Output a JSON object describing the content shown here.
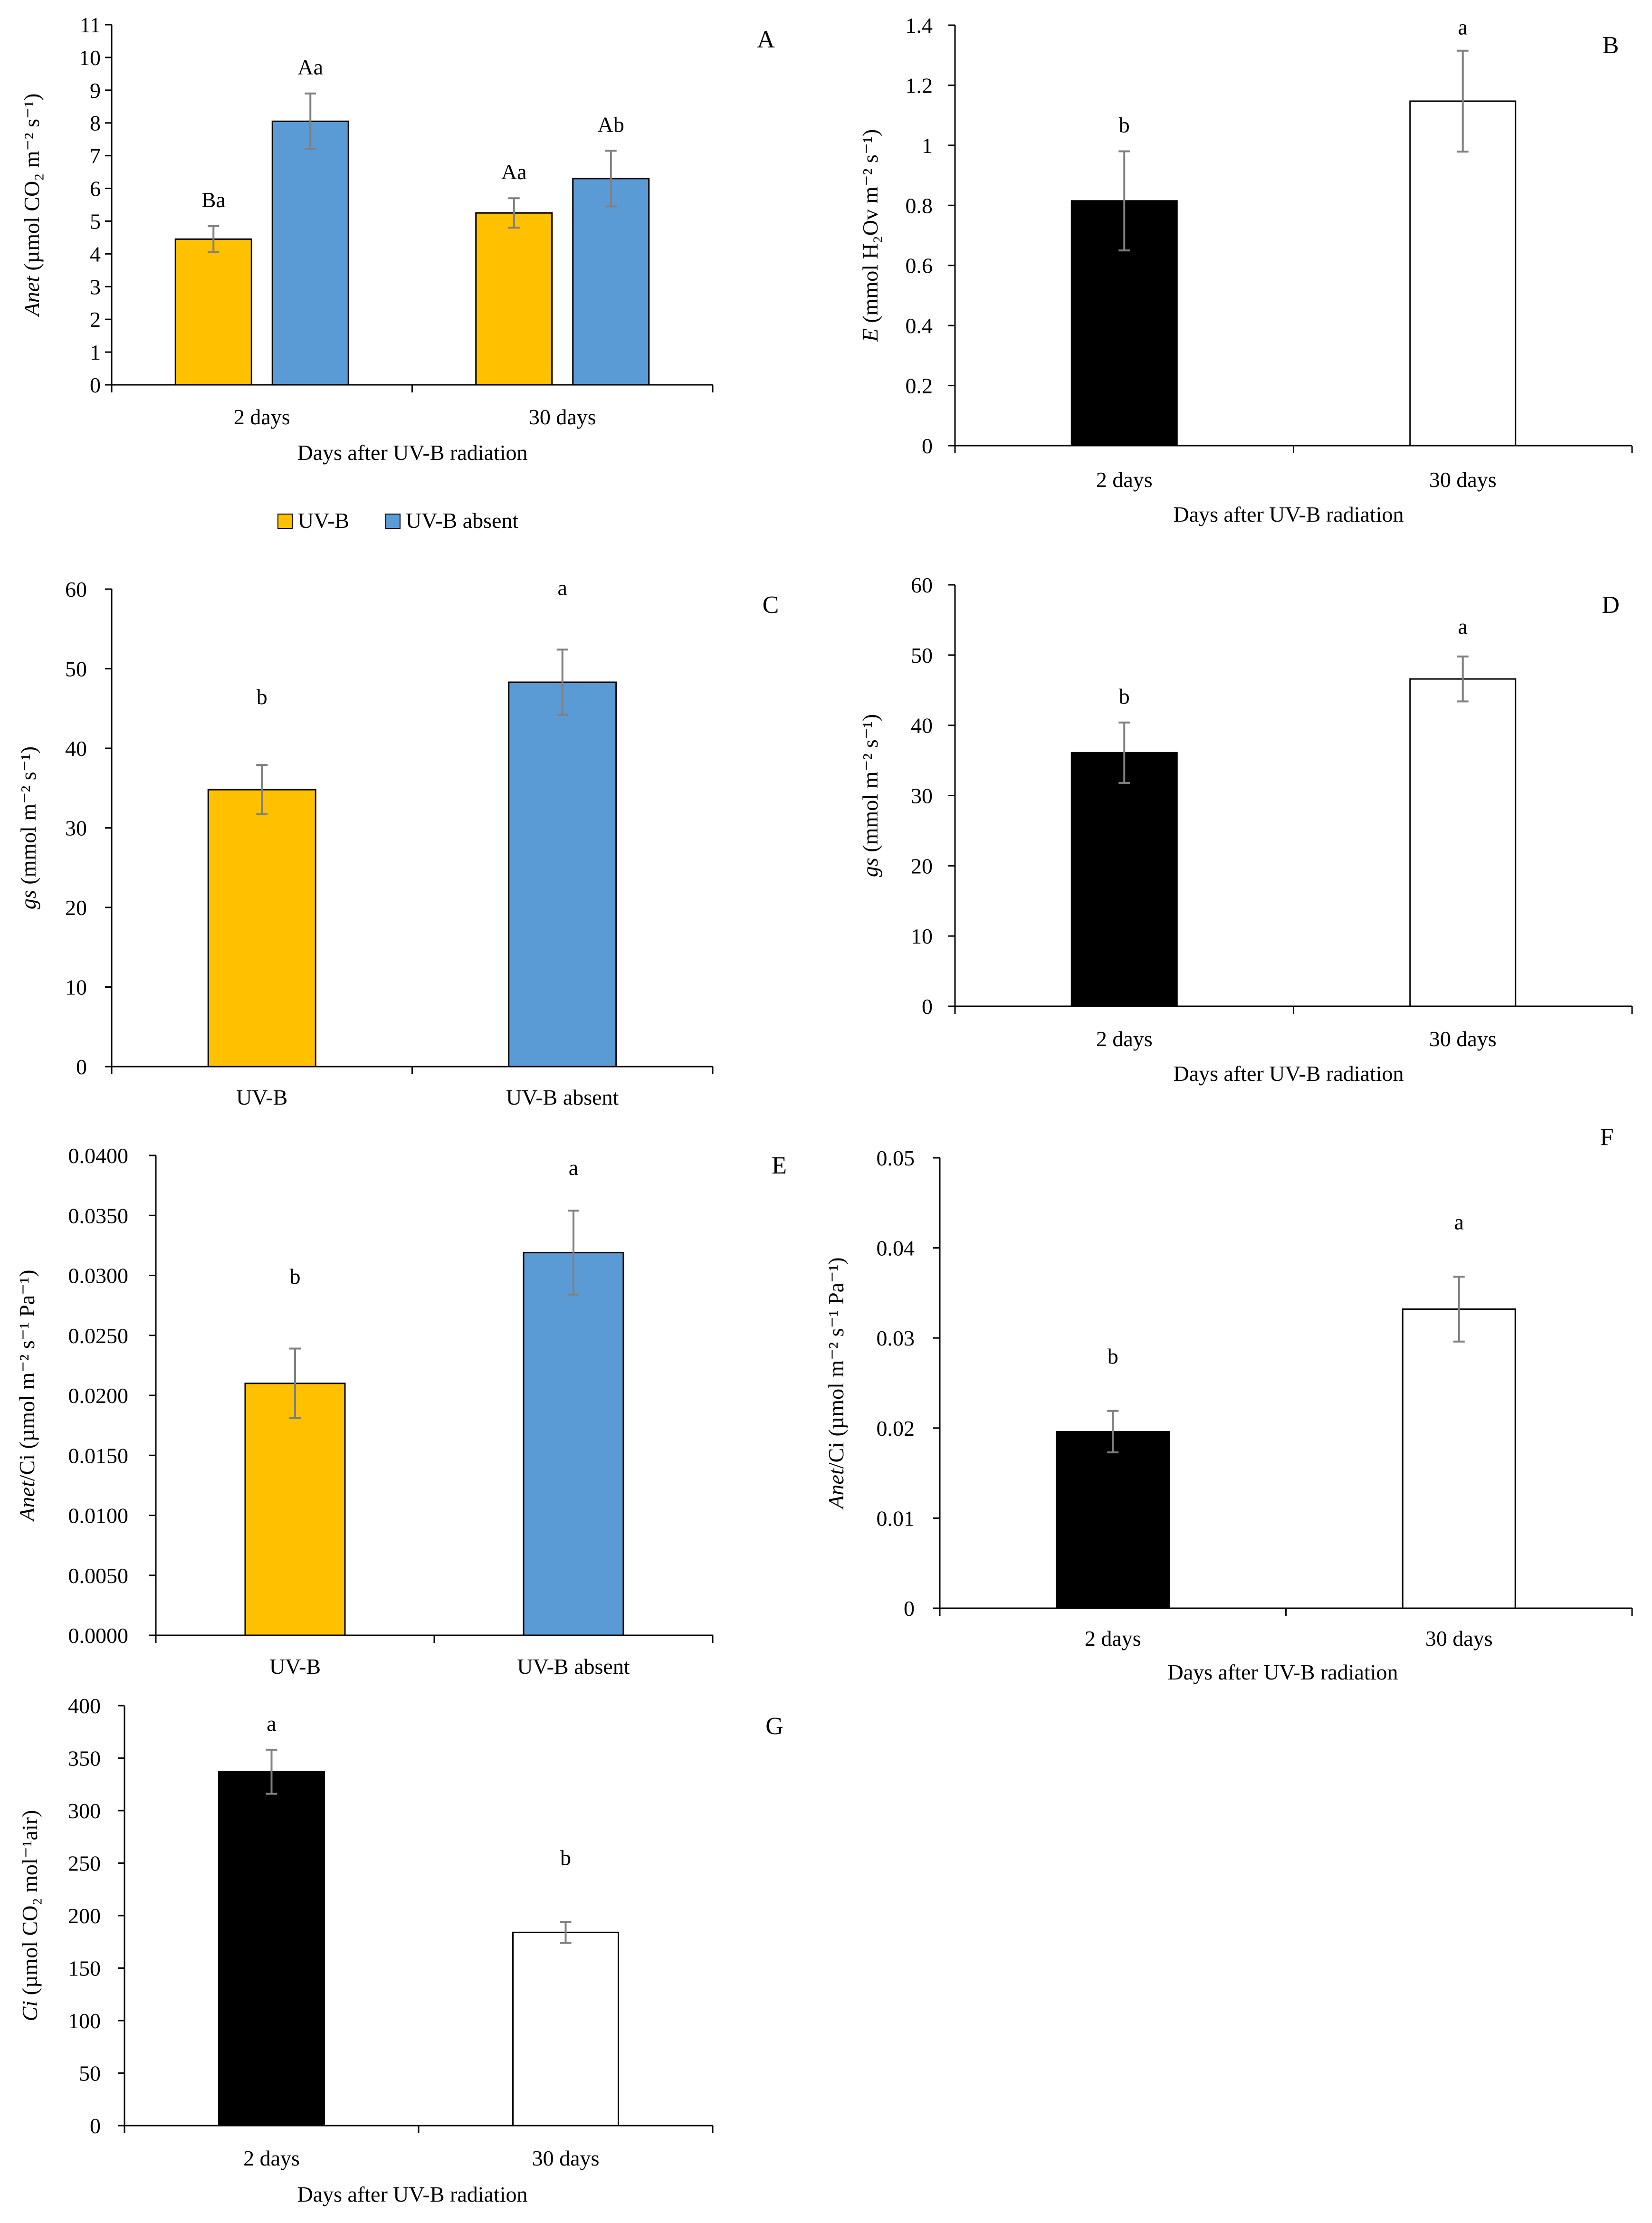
{
  "figure": {
    "panels": [
      {
        "id": "A",
        "label": "A",
        "y_label_italic": "Anet",
        "y_label_rest": " (µmol CO₂ m⁻² s⁻¹)",
        "x_title": "Days after UV-B radiation"
      },
      {
        "id": "B",
        "label": "B",
        "y_label_italic": "E",
        "y_label_rest": " (mmol H₂Ov m⁻² s⁻¹)",
        "x_title": "Days after UV-B radiation"
      },
      {
        "id": "C",
        "label": "C",
        "y_label_italic": "gs",
        "y_label_rest": " (mmol m⁻² s⁻¹)",
        "x_title": ""
      },
      {
        "id": "D",
        "label": "D",
        "y_label_italic": "gs",
        "y_label_rest": " (mmol m⁻² s⁻¹)",
        "x_title": "Days after UV-B radiation"
      },
      {
        "id": "E",
        "label": "E",
        "y_label_italic": "Anet",
        "y_label_rest": "/Ci (µmol m⁻² s⁻¹ Pa⁻¹)",
        "x_title": ""
      },
      {
        "id": "F",
        "label": "F",
        "y_label_italic": "Anet",
        "y_label_rest": "/Ci (µmol m⁻² s⁻¹ Pa⁻¹)",
        "x_title": "Days after UV-B radiation"
      },
      {
        "id": "G",
        "label": "G",
        "y_label_italic": "Ci",
        "y_label_rest": " (µmol CO₂ mol⁻¹air)",
        "x_title": "Days after UV-B radiation"
      }
    ],
    "legend": {
      "items": [
        {
          "label": "UV-B",
          "color": "#FFC000"
        },
        {
          "label": "UV-B absent",
          "color": "#5B9BD5"
        }
      ]
    }
  },
  "chart_data": [
    {
      "id": "A",
      "type": "bar",
      "title": "",
      "xlabel": "Days after UV-B radiation",
      "ylabel": "Anet (µmol CO2 m-2 s-1)",
      "ylim": [
        0,
        11
      ],
      "yticks": [
        "0",
        "1",
        "2",
        "3",
        "4",
        "5",
        "6",
        "7",
        "8",
        "9",
        "10",
        "11"
      ],
      "categories": [
        "2 days",
        "30 days"
      ],
      "series": [
        {
          "name": "UV-B",
          "color": "#FFC000",
          "values": [
            4.45,
            5.25
          ],
          "errors": [
            0.4,
            0.45
          ],
          "letters": [
            "Ba",
            "Aa"
          ]
        },
        {
          "name": "UV-B absent",
          "color": "#5B9BD5",
          "values": [
            8.05,
            6.3
          ],
          "errors": [
            0.85,
            0.85
          ],
          "letters": [
            "Aa",
            "Ab"
          ]
        }
      ]
    },
    {
      "id": "B",
      "type": "bar",
      "title": "",
      "xlabel": "Days after UV-B radiation",
      "ylabel": "E (mmol H2Ov m-2 s-1)",
      "ylim": [
        0,
        1.4
      ],
      "yticks": [
        "0",
        "0.2",
        "0.4",
        "0.6",
        "0.8",
        "1",
        "1.2",
        "1.4"
      ],
      "categories": [
        "2 days",
        "30 days"
      ],
      "series": [
        {
          "name": "",
          "colors": [
            "#000000",
            "#FFFFFF"
          ],
          "values": [
            0.815,
            1.147
          ],
          "errors": [
            0.165,
            0.168
          ],
          "letters": [
            "b",
            "a"
          ]
        }
      ]
    },
    {
      "id": "C",
      "type": "bar",
      "title": "",
      "xlabel": "",
      "ylabel": "gs (mmol m-2 s-1)",
      "ylim": [
        0,
        60
      ],
      "yticks": [
        "0",
        "10",
        "20",
        "30",
        "40",
        "50",
        "60"
      ],
      "categories": [
        "UV-B",
        "UV-B absent"
      ],
      "series": [
        {
          "name": "",
          "colors": [
            "#FFC000",
            "#5B9BD5"
          ],
          "values": [
            34.8,
            48.3
          ],
          "errors": [
            3.1,
            4.1
          ],
          "letters": [
            "b",
            "a"
          ]
        }
      ]
    },
    {
      "id": "D",
      "type": "bar",
      "title": "",
      "xlabel": "Days after UV-B radiation",
      "ylabel": "gs (mmol m-2 s-1)",
      "ylim": [
        0,
        60
      ],
      "yticks": [
        "0",
        "10",
        "20",
        "30",
        "40",
        "50",
        "60"
      ],
      "categories": [
        "2 days",
        "30 days"
      ],
      "series": [
        {
          "name": "",
          "colors": [
            "#000000",
            "#FFFFFF"
          ],
          "values": [
            36.1,
            46.6
          ],
          "errors": [
            4.3,
            3.2
          ],
          "letters": [
            "b",
            "a"
          ]
        }
      ]
    },
    {
      "id": "E",
      "type": "bar",
      "title": "",
      "xlabel": "",
      "ylabel": "Anet/Ci (µmol m-2 s-1 Pa-1)",
      "ylim": [
        0,
        0.04
      ],
      "yticks": [
        "0.0000",
        "0.0050",
        "0.0100",
        "0.0150",
        "0.0200",
        "0.0250",
        "0.0300",
        "0.0350",
        "0.0400"
      ],
      "categories": [
        "UV-B",
        "UV-B absent"
      ],
      "series": [
        {
          "name": "",
          "colors": [
            "#FFC000",
            "#5B9BD5"
          ],
          "values": [
            0.021,
            0.0319
          ],
          "errors": [
            0.0029,
            0.0035
          ],
          "letters": [
            "b",
            "a"
          ]
        }
      ]
    },
    {
      "id": "F",
      "type": "bar",
      "title": "",
      "xlabel": "Days after UV-B radiation",
      "ylabel": "Anet/Ci (µmol m-2 s-1 Pa-1)",
      "ylim": [
        0,
        0.05
      ],
      "yticks": [
        "0",
        "0.01",
        "0.02",
        "0.03",
        "0.04",
        "0.05"
      ],
      "categories": [
        "2 days",
        "30 days"
      ],
      "series": [
        {
          "name": "",
          "colors": [
            "#000000",
            "#FFFFFF"
          ],
          "values": [
            0.0196,
            0.0332
          ],
          "errors": [
            0.0023,
            0.0036
          ],
          "letters": [
            "b",
            "a"
          ]
        }
      ]
    },
    {
      "id": "G",
      "type": "bar",
      "title": "",
      "xlabel": "Days after UV-B radiation",
      "ylabel": "Ci (µmol CO2 mol-1 air)",
      "ylim": [
        0,
        400
      ],
      "yticks": [
        "0",
        "50",
        "100",
        "150",
        "200",
        "250",
        "300",
        "350",
        "400"
      ],
      "categories": [
        "2 days",
        "30 days"
      ],
      "series": [
        {
          "name": "",
          "colors": [
            "#000000",
            "#FFFFFF"
          ],
          "values": [
            337,
            184
          ],
          "errors": [
            21,
            10
          ],
          "letters": [
            "a",
            "b"
          ]
        }
      ]
    }
  ]
}
